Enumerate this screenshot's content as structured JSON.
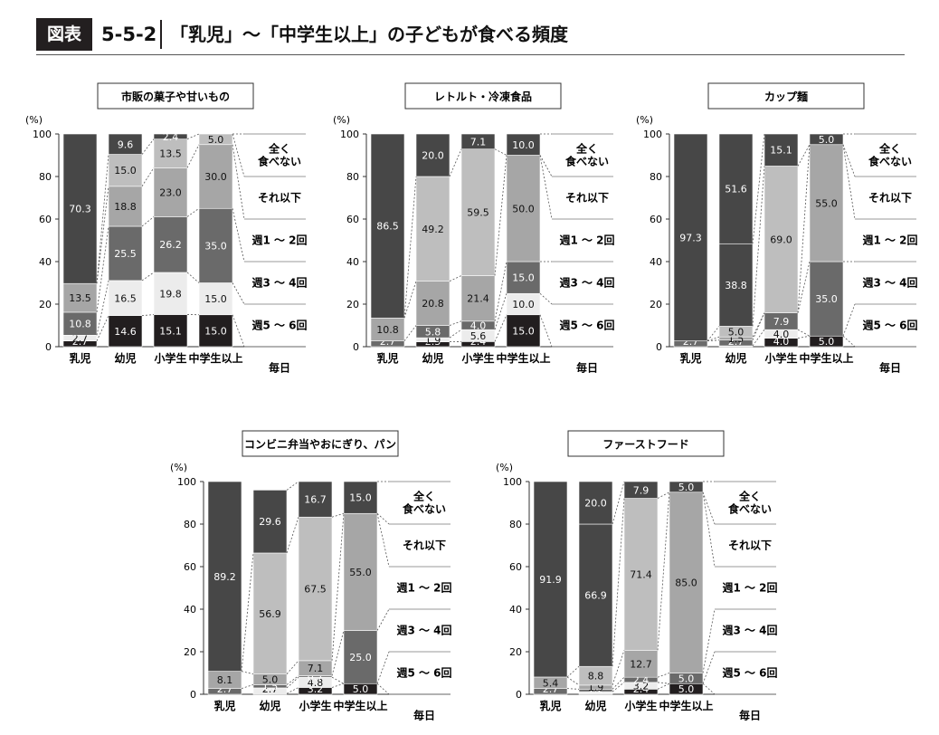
{
  "header": {
    "figure_label": "図表",
    "figure_number": "5-5-2",
    "title": "「乳児」～「中学生以上」の子どもが食べる頻度"
  },
  "colors": {
    "毎日": "#221e1f",
    "週5 ～ 6回": "#ececec",
    "週3 ～ 4回": "#6a6a6a",
    "週1 ～ 2回": "#a6a6a6",
    "それ以下": "#bebebe",
    "全く食べない": "#474747"
  },
  "chart_data": [
    {
      "type": "bar",
      "title": "市販の菓子や甘いもの",
      "ylabel": "(%)",
      "ylim": [
        0,
        100
      ],
      "yticks": [
        "0",
        "20",
        "40",
        "60",
        "80",
        "100"
      ],
      "categories": [
        "乳児",
        "幼児",
        "小学生",
        "中学生以上"
      ],
      "series": [
        {
          "name": "毎日",
          "values": [
            2.7,
            14.6,
            15.1,
            15.0
          ],
          "labels": [
            "2.7",
            "14.6",
            "15.1",
            "15.0"
          ]
        },
        {
          "name": "週5 ～ 6回",
          "values": [
            2.7,
            16.5,
            19.8,
            15.0
          ],
          "labels": [
            "2.7",
            "16.5",
            "19.8",
            "15.0"
          ]
        },
        {
          "name": "週3 ～ 4回",
          "values": [
            10.8,
            25.5,
            26.2,
            35.0
          ],
          "labels": [
            "10.8",
            "25.5",
            "26.2",
            "35.0"
          ]
        },
        {
          "name": "週1 ～ 2回",
          "values": [
            13.5,
            18.8,
            23.0,
            30.0
          ],
          "labels": [
            "13.5",
            "18.8",
            "23.0",
            "30.0"
          ]
        },
        {
          "name": "それ以下",
          "values": [
            0,
            15.0,
            13.5,
            5.0
          ],
          "labels": [
            "",
            "15.0",
            "13.5",
            "5.0"
          ]
        },
        {
          "name": "全く食べない",
          "values": [
            70.3,
            9.6,
            2.4,
            0
          ],
          "labels": [
            "70.3",
            "9.6",
            "2.4",
            ""
          ]
        }
      ],
      "legend_labels": [
        "全く\n食べない",
        "それ以下",
        "週1 ～ 2回",
        "週3 ～ 4回",
        "週5 ～ 6回",
        "毎日"
      ]
    },
    {
      "type": "bar",
      "title": "レトルト・冷凍食品",
      "ylabel": "(%)",
      "ylim": [
        0,
        100
      ],
      "yticks": [
        "0",
        "20",
        "40",
        "60",
        "80",
        "100"
      ],
      "categories": [
        "乳児",
        "幼児",
        "小学生",
        "中学生以上"
      ],
      "series": [
        {
          "name": "毎日",
          "values": [
            0,
            2.3,
            2.4,
            15.0
          ],
          "labels": [
            "",
            "2.3",
            "2.4",
            "15.0"
          ]
        },
        {
          "name": "週5 ～ 6回",
          "values": [
            0,
            1.9,
            5.6,
            10.0
          ],
          "labels": [
            "",
            "1.9",
            "5.6",
            "10.0"
          ]
        },
        {
          "name": "週3 ～ 4回",
          "values": [
            2.7,
            5.8,
            4.0,
            15.0
          ],
          "labels": [
            "2.7",
            "5.8",
            "4.0",
            "15.0"
          ]
        },
        {
          "name": "週1 ～ 2回",
          "values": [
            10.8,
            20.8,
            21.4,
            50.0
          ],
          "labels": [
            "10.8",
            "20.8",
            "21.4",
            "50.0"
          ]
        },
        {
          "name": "それ以下",
          "values": [
            0,
            49.2,
            59.5,
            0
          ],
          "labels": [
            "",
            "49.2",
            "59.5",
            ""
          ]
        },
        {
          "name": "全く食べない",
          "values": [
            86.5,
            20.0,
            7.1,
            10.0
          ],
          "labels": [
            "86.5",
            "20.0",
            "7.1",
            "10.0"
          ]
        }
      ],
      "legend_labels": [
        "全く\n食べない",
        "それ以下",
        "週1 ～ 2回",
        "週3 ～ 4回",
        "週5 ～ 6回",
        "毎日"
      ]
    },
    {
      "type": "bar",
      "title": "カップ麺",
      "ylabel": "(%)",
      "ylim": [
        0,
        100
      ],
      "yticks": [
        "0",
        "20",
        "40",
        "60",
        "80",
        "100"
      ],
      "categories": [
        "乳児",
        "幼児",
        "小学生",
        "中学生以上"
      ],
      "series": [
        {
          "name": "毎日",
          "values": [
            0,
            0,
            4.0,
            5.0
          ],
          "labels": [
            "",
            "",
            "4.0",
            "5.0"
          ]
        },
        {
          "name": "週5 ～ 6回",
          "values": [
            0,
            0.4,
            4.0,
            0
          ],
          "labels": [
            "",
            "0.4",
            "4.0",
            ""
          ]
        },
        {
          "name": "週3 ～ 4回",
          "values": [
            2.7,
            2.7,
            7.9,
            35.0
          ],
          "labels": [
            "2.7",
            "2.7",
            "7.9",
            "35.0"
          ]
        },
        {
          "name": "週1 ～ 2回",
          "values": [
            0,
            1.5,
            0,
            55.0
          ],
          "labels": [
            "",
            "1.5",
            "",
            "55.0"
          ]
        },
        {
          "name": "それ以下",
          "values": [
            0,
            5.0,
            69.0,
            0
          ],
          "labels": [
            "",
            "5.0",
            "69.0",
            ""
          ]
        },
        {
          "name": "全く食べない",
          "values": [
            97.3,
            38.8,
            15.1,
            5.0
          ],
          "labels": [
            "97.3",
            "38.8",
            "15.1",
            "5.0"
          ]
        },
        {
          "name": "",
          "values": [
            0,
            51.6,
            0,
            0
          ],
          "labels": [
            "",
            "51.6",
            "",
            ""
          ]
        }
      ],
      "legend_labels": [
        "全く\n食べない",
        "それ以下",
        "週1 ～ 2回",
        "週3 ～ 4回",
        "週5 ～ 6回",
        "毎日"
      ]
    },
    {
      "type": "bar",
      "title": "コンビニ弁当やおにぎり、パン",
      "ylabel": "(%)",
      "ylim": [
        0,
        100
      ],
      "yticks": [
        "0",
        "20",
        "40",
        "60",
        "80",
        "100"
      ],
      "categories": [
        "乳児",
        "幼児",
        "小学生",
        "中学生以上"
      ],
      "series": [
        {
          "name": "毎日",
          "values": [
            0,
            0.3,
            3.2,
            5.0
          ],
          "labels": [
            "",
            "0.3",
            "3.2",
            "5.0"
          ]
        },
        {
          "name": "週5 ～ 6回",
          "values": [
            0,
            2.7,
            4.8,
            0
          ],
          "labels": [
            "",
            "2.7",
            "4.8",
            ""
          ]
        },
        {
          "name": "週3 ～ 4回",
          "values": [
            2.7,
            1.5,
            0.7,
            25.0
          ],
          "labels": [
            "2.7",
            "1.5",
            "0.7",
            "25.0"
          ]
        },
        {
          "name": "週1 ～ 2回",
          "values": [
            8.1,
            5.0,
            7.1,
            55.0
          ],
          "labels": [
            "8.1",
            "5.0",
            "7.1",
            "55.0"
          ]
        },
        {
          "name": "それ以下",
          "values": [
            0,
            56.9,
            67.5,
            0
          ],
          "labels": [
            "",
            "56.9",
            "67.5",
            ""
          ]
        },
        {
          "name": "全く食べない",
          "values": [
            89.2,
            29.6,
            16.7,
            15.0
          ],
          "labels": [
            "89.2",
            "29.6",
            "16.7",
            "15.0"
          ]
        }
      ],
      "legend_labels": [
        "全く\n食べない",
        "それ以下",
        "週1 ～ 2回",
        "週3 ～ 4回",
        "週5 ～ 6回",
        "毎日"
      ]
    },
    {
      "type": "bar",
      "title": "ファーストフード",
      "ylabel": "(%)",
      "ylim": [
        0,
        100
      ],
      "yticks": [
        "0",
        "20",
        "40",
        "60",
        "80",
        "100"
      ],
      "categories": [
        "乳児",
        "幼児",
        "小学生",
        "中学生以上"
      ],
      "series": [
        {
          "name": "毎日",
          "values": [
            0,
            0,
            2.4,
            5.0
          ],
          "labels": [
            "",
            "",
            "2.4",
            "5.0"
          ]
        },
        {
          "name": "週5 ～ 6回",
          "values": [
            0,
            1.2,
            3.2,
            0
          ],
          "labels": [
            "",
            "1.2",
            "3.2",
            ""
          ]
        },
        {
          "name": "週3 ～ 4回",
          "values": [
            2.7,
            1.2,
            2.4,
            5.0
          ],
          "labels": [
            "2.7",
            "1.2",
            "2.4",
            "5.0"
          ]
        },
        {
          "name": "週1 ～ 2回",
          "values": [
            5.4,
            1.9,
            12.7,
            85.0
          ],
          "labels": [
            "5.4",
            "1.9",
            "12.7",
            "85.0"
          ]
        },
        {
          "name": "それ以下",
          "values": [
            0,
            8.8,
            71.4,
            0
          ],
          "labels": [
            "",
            "8.8",
            "71.4",
            ""
          ]
        },
        {
          "name": "全く食べない",
          "values": [
            91.9,
            66.9,
            7.9,
            5.0
          ],
          "labels": [
            "91.9",
            "66.9",
            "7.9",
            "5.0"
          ]
        },
        {
          "name": "",
          "values": [
            0,
            20.0,
            0,
            0
          ],
          "labels": [
            "",
            "20.0",
            "",
            ""
          ]
        }
      ],
      "legend_labels": [
        "全く\n食べない",
        "それ以下",
        "週1 ～ 2回",
        "週3 ～ 4回",
        "週5 ～ 6回",
        "毎日"
      ]
    }
  ]
}
